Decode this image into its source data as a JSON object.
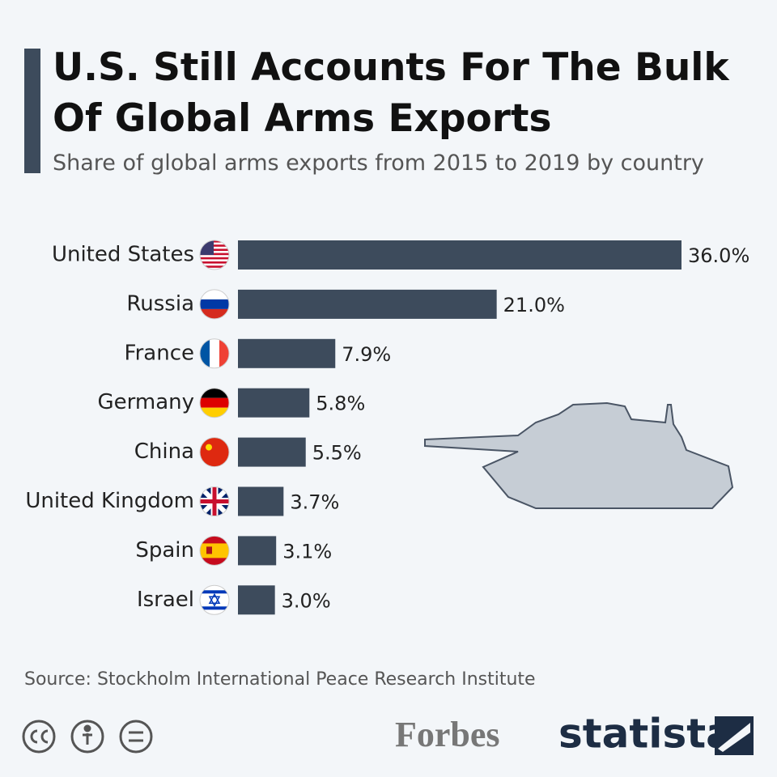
{
  "chart_data": {
    "type": "bar",
    "orientation": "horizontal",
    "title": "U.S. Still Accounts For The Bulk Of Global Arms Exports",
    "subtitle": "Share of global arms exports from 2015 to 2019 by country",
    "categories": [
      "United States",
      "Russia",
      "France",
      "Germany",
      "China",
      "United Kingdom",
      "Spain",
      "Israel"
    ],
    "values": [
      36.0,
      21.0,
      7.9,
      5.8,
      5.5,
      3.7,
      3.1,
      3.0
    ],
    "value_labels": [
      "36.0%",
      "21.0%",
      "7.9%",
      "5.8%",
      "5.5%",
      "3.7%",
      "3.1%",
      "3.0%"
    ],
    "color": "#3d4b5c",
    "source": "Source: Stockholm International Peace Research Institute",
    "logos": [
      "Forbes",
      "statista"
    ]
  }
}
